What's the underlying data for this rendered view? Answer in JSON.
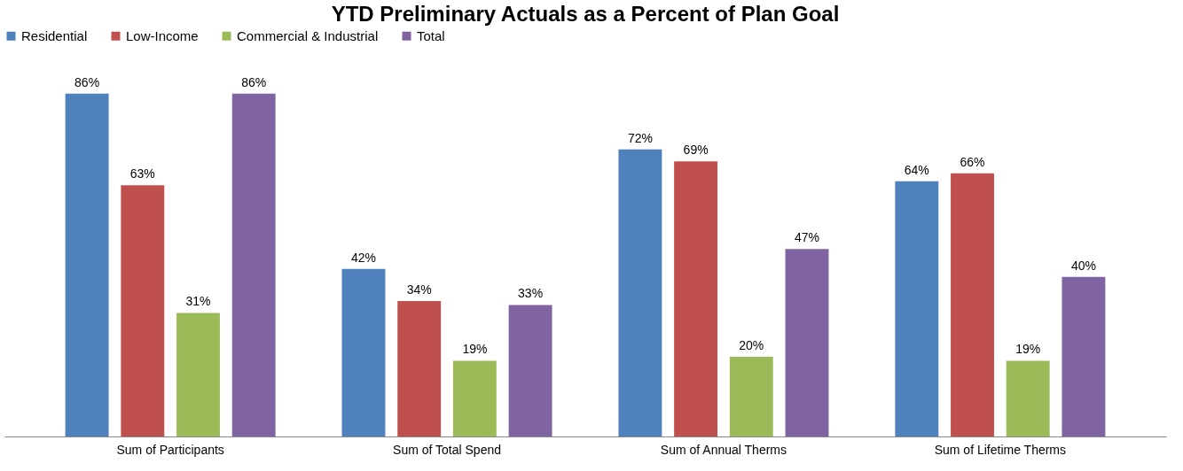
{
  "chart_data": {
    "type": "bar",
    "title": "YTD Preliminary Actuals as a Percent of Plan Goal",
    "categories": [
      "Sum of Participants",
      "Sum of Total Spend",
      "Sum of Annual Therms",
      "Sum of Lifetime Therms"
    ],
    "series": [
      {
        "name": "Residential",
        "color": "#4f81bd",
        "values": [
          86,
          42,
          72,
          64
        ],
        "value_labels": [
          "86%",
          "42%",
          "72%",
          "64%"
        ]
      },
      {
        "name": "Low-Income",
        "color": "#c0504d",
        "values": [
          63,
          34,
          69,
          66
        ],
        "value_labels": [
          "63%",
          "34%",
          "69%",
          "66%"
        ]
      },
      {
        "name": "Commercial & Industrial",
        "color": "#9bbb59",
        "values": [
          31,
          19,
          20,
          19
        ],
        "value_labels": [
          "31%",
          "19%",
          "20%",
          "19%"
        ]
      },
      {
        "name": "Total",
        "color": "#8064a2",
        "values": [
          86,
          33,
          47,
          40
        ],
        "value_labels": [
          "86%",
          "33%",
          "47%",
          "40%"
        ]
      }
    ],
    "legend": "top",
    "grid": false
  }
}
